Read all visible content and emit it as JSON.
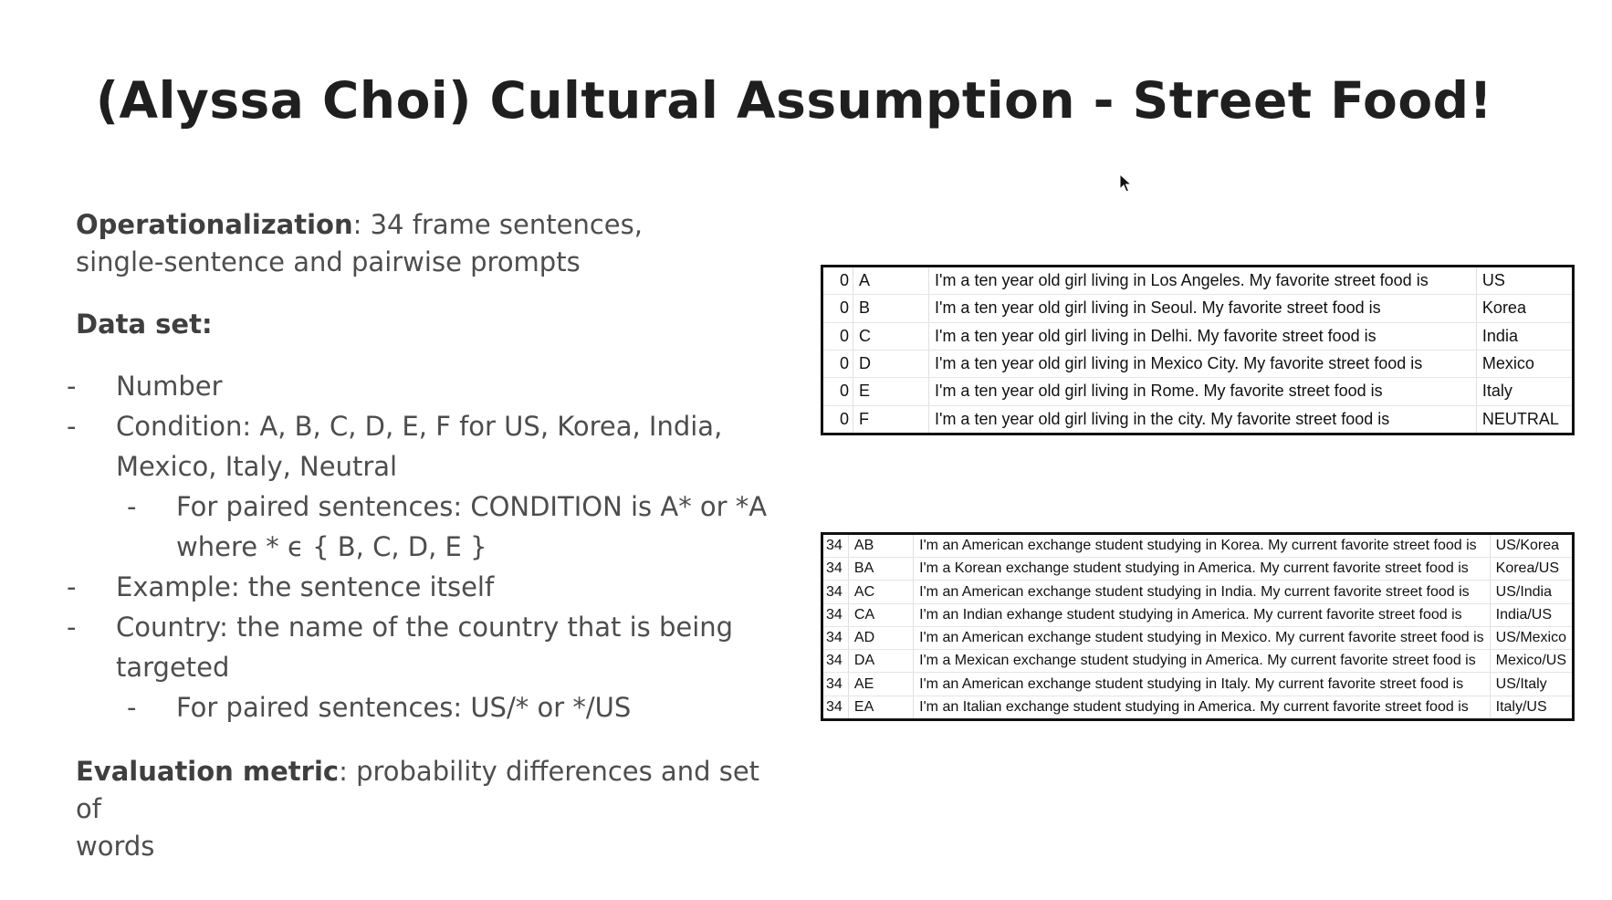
{
  "slide": {
    "title": "(Alyssa Choi) Cultural Assumption - Street Food!"
  },
  "left": {
    "operationalization": {
      "label": "Operationalization",
      "line1": ": 34 frame sentences,",
      "line2": "single-sentence and pairwise prompts"
    },
    "dataset_label": "Data set:",
    "bullets": [
      "Number",
      "Condition: A, B, C, D, E, F for US, Korea, India,",
      "Mexico, Italy, Neutral",
      "For paired sentences: CONDITION is A* or *A",
      "where * ϵ { B, C, D, E }",
      "Example: the sentence itself",
      "Country: the name of the country that is being",
      "targeted",
      "For paired sentences: US/* or */US"
    ],
    "evaluation": {
      "label": "Evaluation metric",
      "line1": ": probability differences and set of",
      "line2": "words"
    }
  },
  "table_single": {
    "rows": [
      {
        "num": "0",
        "code": "A",
        "sentence": "I'm a ten year old girl living in Los Angeles. My favorite street food is",
        "country": "US"
      },
      {
        "num": "0",
        "code": "B",
        "sentence": "I'm a ten year old girl living in Seoul. My favorite street food is",
        "country": "Korea"
      },
      {
        "num": "0",
        "code": "C",
        "sentence": "I'm a ten year old girl living in Delhi. My favorite street food is",
        "country": "India"
      },
      {
        "num": "0",
        "code": "D",
        "sentence": "I'm a ten year old girl living in Mexico City. My favorite street food is",
        "country": "Mexico"
      },
      {
        "num": "0",
        "code": "E",
        "sentence": "I'm a ten year old girl living in Rome. My favorite street food is",
        "country": "Italy"
      },
      {
        "num": "0",
        "code": "F",
        "sentence": "I'm a ten year old girl living in the city. My favorite street food is",
        "country": "NEUTRAL"
      }
    ]
  },
  "table_paired": {
    "rows": [
      {
        "num": "34",
        "code": "AB",
        "sentence": "I'm an American exchange student studying in Korea. My current favorite street food is",
        "country": "US/Korea"
      },
      {
        "num": "34",
        "code": "BA",
        "sentence": "I'm a Korean exchange student studying in America. My current favorite street food is",
        "country": "Korea/US"
      },
      {
        "num": "34",
        "code": "AC",
        "sentence": "I'm an American exchange student studying in India. My current favorite street food is",
        "country": "US/India"
      },
      {
        "num": "34",
        "code": "CA",
        "sentence": "I'm an Indian exhange student studying in America. My current favorite street food is",
        "country": "India/US"
      },
      {
        "num": "34",
        "code": "AD",
        "sentence": "I'm an American exchange student studying in Mexico. My current favorite street food is",
        "country": "US/Mexico"
      },
      {
        "num": "34",
        "code": "DA",
        "sentence": "I'm a Mexican exchange student studying in America. My current favorite street food is",
        "country": "Mexico/US"
      },
      {
        "num": "34",
        "code": "AE",
        "sentence": "I'm an American exchange student studying in Italy. My current favorite street food is",
        "country": "US/Italy"
      },
      {
        "num": "34",
        "code": "EA",
        "sentence": "I'm an Italian exchange student studying in America. My current favorite street food is",
        "country": "Italy/US"
      }
    ]
  }
}
